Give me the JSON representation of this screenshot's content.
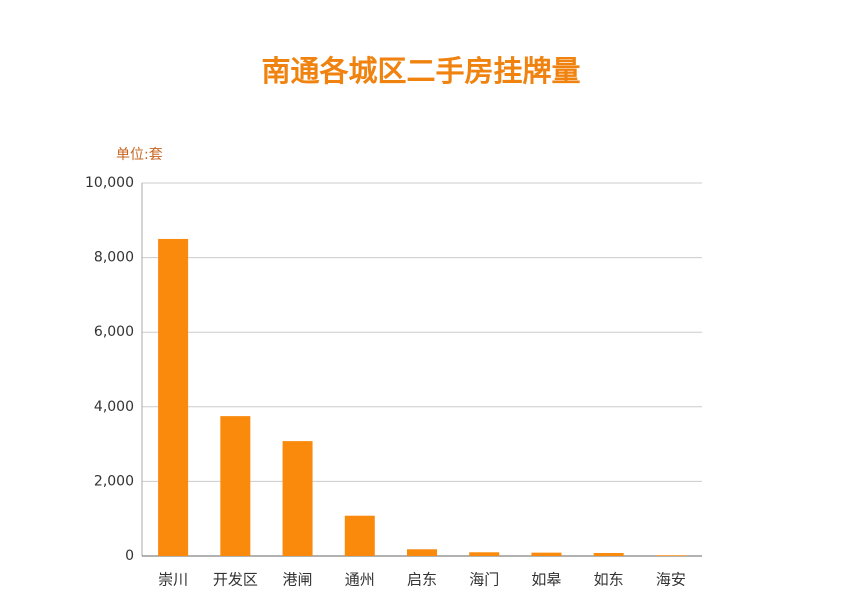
{
  "chart_data": {
    "type": "bar",
    "title": "南通各城区二手房挂牌量",
    "y_label": "单位:套",
    "categories": [
      "崇川",
      "开发区",
      "港闸",
      "通州",
      "启东",
      "海门",
      "如皋",
      "如东",
      "海安"
    ],
    "values": [
      8500,
      3750,
      3080,
      1080,
      180,
      100,
      90,
      80,
      20
    ],
    "color": "#f98a0c",
    "ylim": [
      0,
      10000
    ],
    "yticks": [
      0,
      {
        "value": 2000,
        "label": "2,000"
      },
      {
        "value": 4000,
        "label": "4,000"
      },
      {
        "value": 6000,
        "label": "6,000"
      },
      {
        "value": 8000,
        "label": "8,000"
      },
      {
        "value": 10000,
        "label": "10,000"
      }
    ],
    "grid": true
  }
}
